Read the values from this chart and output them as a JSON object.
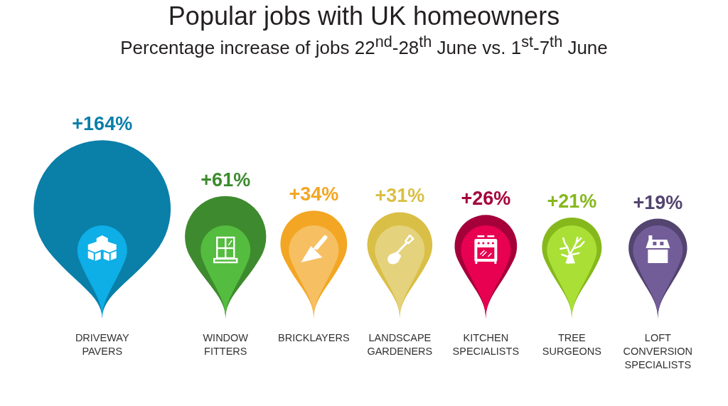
{
  "chart_data": {
    "type": "other",
    "title": "Popular jobs with UK homeowners",
    "subtitle": "Percentage increase of jobs 22$^{nd}$-28$^{th}$ June vs. 1$^{st}$-7$^{th}$ June",
    "categories": [
      "DRIVEWAY PAVERS",
      "WINDOW FITTERS",
      "BRICKLAYERS",
      "LANDSCAPE GARDENERS",
      "KITCHEN SPECIALISTS",
      "TREE SURGEONS",
      "LOFT CONVERSION SPECIALISTS"
    ],
    "values": [
      164,
      61,
      34,
      31,
      26,
      21,
      19
    ],
    "value_labels": [
      "+164%",
      "+61%",
      "+34%",
      "+31%",
      "+26%",
      "+21%",
      "+19%"
    ],
    "colors": [
      "#0a7fa8",
      "#3e8a2e",
      "#f3a623",
      "#d9bf45",
      "#a5003a",
      "#86b81c",
      "#534470"
    ]
  }
}
